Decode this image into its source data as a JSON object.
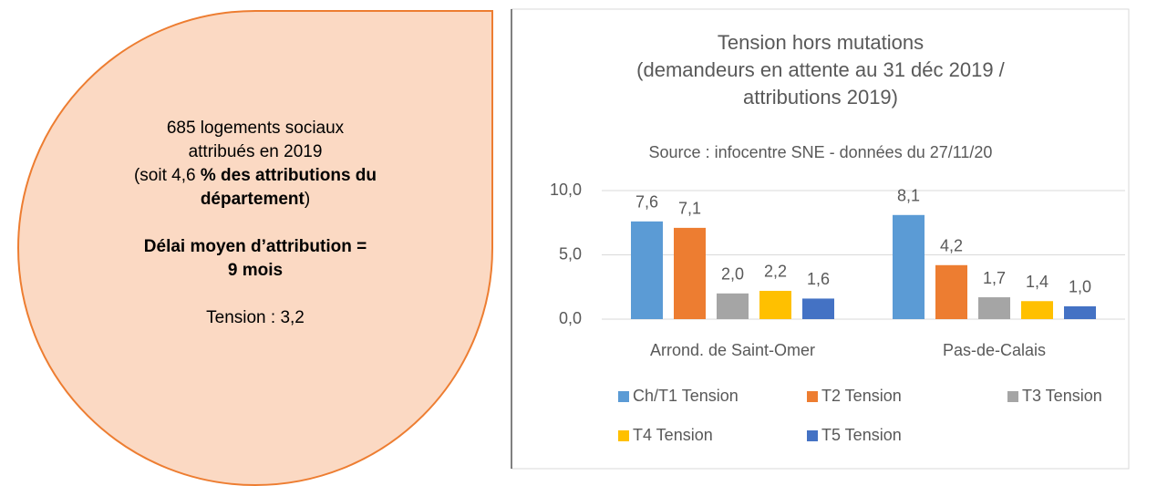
{
  "callout": {
    "lines": [
      [
        "685 logements sociaux"
      ],
      [
        "attribués en 2019"
      ],
      [
        "(soit 4,6 ",
        "% des attributions du"
      ],
      [
        "département",
        ")"
      ],
      [
        "Délai moyen d’attribution ="
      ],
      [
        "9 mois"
      ],
      [
        "Tension : 3,2"
      ]
    ]
  },
  "chart_data": {
    "type": "bar",
    "title": [
      "Tension hors mutations",
      "(demandeurs en attente au 31 déc 2019 /",
      "attributions 2019)"
    ],
    "subtitle": "Source : infocentre SNE - données du 27/11/20",
    "categories": [
      "Arrond. de Saint-Omer",
      "Pas-de-Calais"
    ],
    "series": [
      {
        "name": "Ch/T1 Tension",
        "color": "#5b9bd5",
        "values": [
          7.6,
          8.1
        ],
        "value_labels": [
          "7,6",
          "8,1"
        ]
      },
      {
        "name": "T2 Tension",
        "color": "#ed7d31",
        "values": [
          7.1,
          4.2
        ],
        "value_labels": [
          "7,1",
          "4,2"
        ]
      },
      {
        "name": "T3 Tension",
        "color": "#a5a5a5",
        "values": [
          2.0,
          1.7
        ],
        "value_labels": [
          "2,0",
          "1,7"
        ]
      },
      {
        "name": "T4 Tension",
        "color": "#ffc000",
        "values": [
          2.2,
          1.4
        ],
        "value_labels": [
          "2,2",
          "1,4"
        ]
      },
      {
        "name": "T5 Tension",
        "color": "#4472c4",
        "values": [
          1.6,
          1.0
        ],
        "value_labels": [
          "1,6",
          "1,0"
        ]
      }
    ],
    "ylim": [
      0,
      10
    ],
    "yticks": [
      {
        "value": 0,
        "label": "0,0"
      },
      {
        "value": 5,
        "label": "5,0"
      },
      {
        "value": 10,
        "label": "10,0"
      }
    ],
    "grid": true,
    "legend": "bottom"
  }
}
